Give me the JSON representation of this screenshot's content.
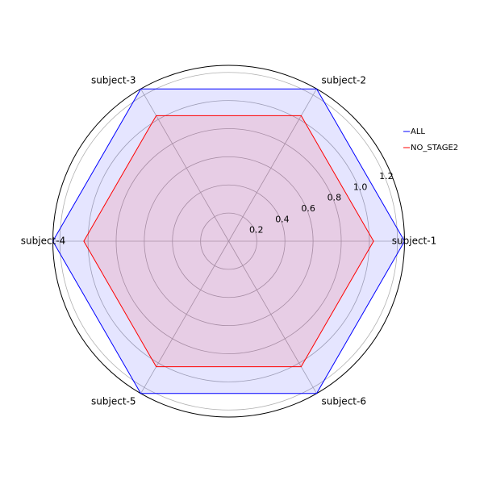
{
  "chart_data": {
    "type": "radar",
    "title": "",
    "categories": [
      "subject-1",
      "subject-2",
      "subject-3",
      "subject-4",
      "subject-5",
      "subject-6"
    ],
    "rticks": [
      "0.2",
      "0.4",
      "0.6",
      "0.8",
      "1.0",
      "1.2"
    ],
    "rticks_values": [
      0.2,
      0.4,
      0.6,
      0.8,
      1.0,
      1.2
    ],
    "rlim": [
      0,
      1.25
    ],
    "grid": true,
    "legend_position": "right",
    "series": [
      {
        "name": "ALL",
        "values": [
          1.25,
          1.25,
          1.25,
          1.25,
          1.25,
          1.25
        ],
        "color": "#0000ff",
        "fill": "#0000ff",
        "fill_opacity": 0.1
      },
      {
        "name": "NO_STAGE2",
        "values": [
          1.03,
          1.03,
          1.03,
          1.03,
          1.03,
          1.03
        ],
        "color": "#ff0000",
        "fill": "#ff0000",
        "fill_opacity": 0.1
      }
    ]
  }
}
